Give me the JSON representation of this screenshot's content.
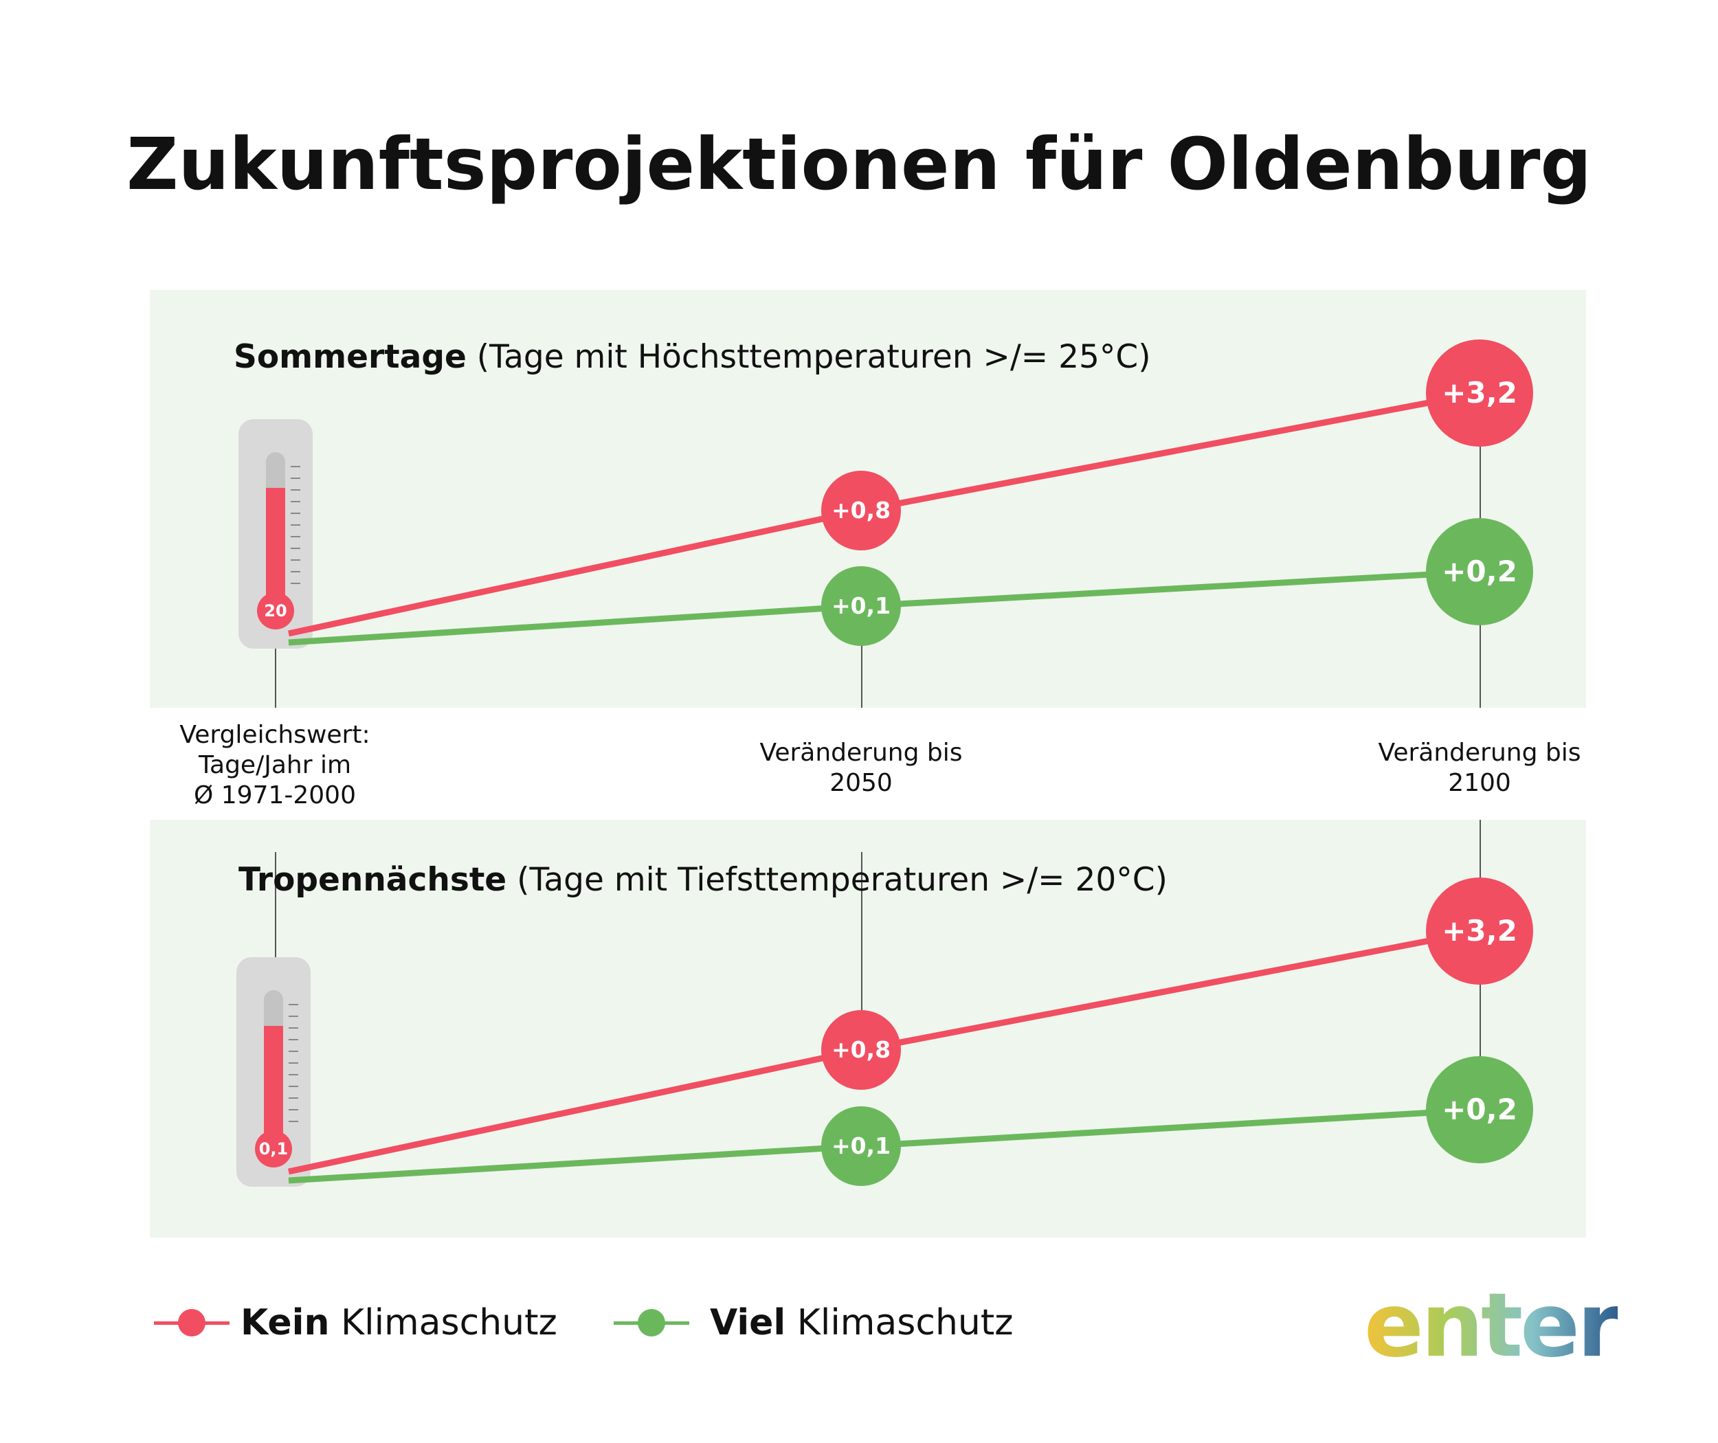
{
  "title": "Zukunftsprojektionen für Oldenburg",
  "colors": {
    "kein": "#f14e62",
    "viel": "#6bb85c",
    "panel": "#eff6ee"
  },
  "x_labels": [
    "Vergleichswert:\nTage/Jahr im\nØ 1971-2000",
    "Veränderung bis\n2050",
    "Veränderung bis\n2100"
  ],
  "panels": [
    {
      "title_bold": "Sommertage",
      "title_rest": " (Tage mit Höchsttemperaturen >/= 25°C)",
      "baseline_label": "20",
      "kein_2050": "+0,8",
      "viel_2050": "+0,1",
      "kein_2100": "+3,2",
      "viel_2100": "+0,2"
    },
    {
      "title_bold": "Tropennächste",
      "title_rest": " (Tage mit Tiefsttemperaturen >/= 20°C)",
      "baseline_label": "0,1",
      "kein_2050": "+0,8",
      "viel_2050": "+0,1",
      "kein_2100": "+3,2",
      "viel_2100": "+0,2"
    }
  ],
  "legend": {
    "kein_bold": "Kein",
    "kein_rest": " Klimaschutz",
    "viel_bold": "Viel",
    "viel_rest": " Klimaschutz"
  },
  "logo_text": "enter",
  "chart_data": [
    {
      "type": "line",
      "title": "Sommertage (Tage mit Höchsttemperaturen >/= 25°C)",
      "categories": [
        "Vergleichswert: Tage/Jahr im Ø 1971-2000",
        "Veränderung bis 2050",
        "Veränderung bis 2100"
      ],
      "baseline": 20,
      "series": [
        {
          "name": "Kein Klimaschutz",
          "values": [
            0,
            0.8,
            3.2
          ]
        },
        {
          "name": "Viel Klimaschutz",
          "values": [
            0,
            0.1,
            0.2
          ]
        }
      ]
    },
    {
      "type": "line",
      "title": "Tropennächste (Tage mit Tiefsttemperaturen >/= 20°C)",
      "categories": [
        "Vergleichswert: Tage/Jahr im Ø 1971-2000",
        "Veränderung bis 2050",
        "Veränderung bis 2100"
      ],
      "baseline": 0.1,
      "series": [
        {
          "name": "Kein Klimaschutz",
          "values": [
            0,
            0.8,
            3.2
          ]
        },
        {
          "name": "Viel Klimaschutz",
          "values": [
            0,
            0.1,
            0.2
          ]
        }
      ]
    }
  ]
}
